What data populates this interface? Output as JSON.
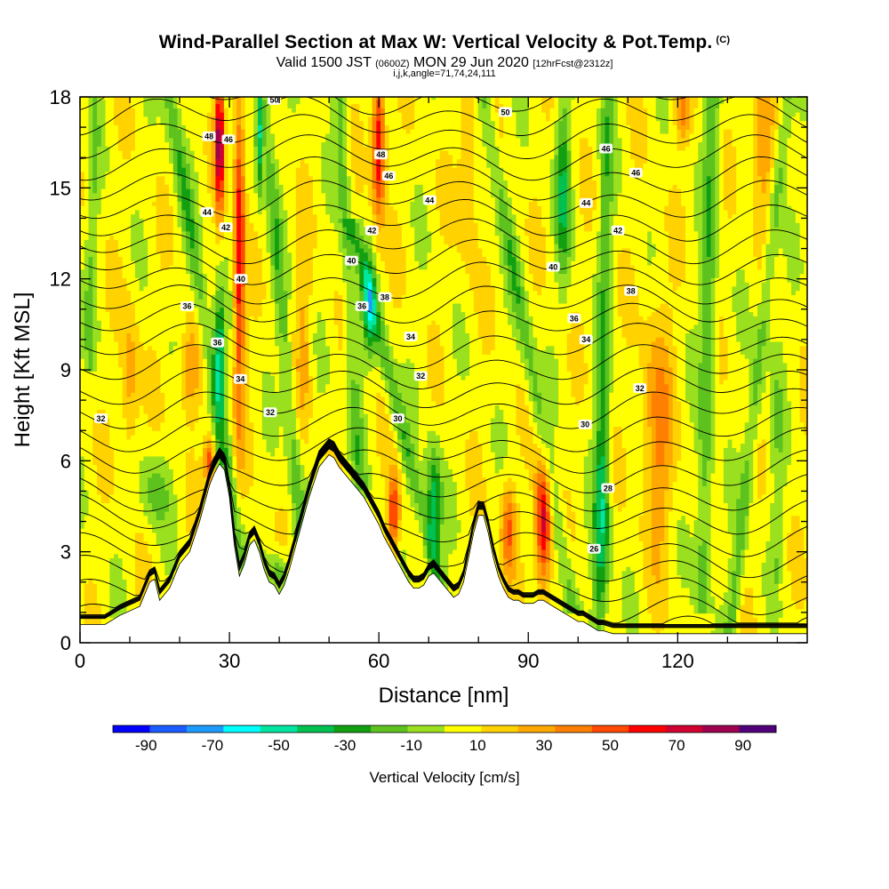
{
  "header": {
    "title": "Wind-Parallel Section at Max W: Vertical Velocity & Pot.Temp.",
    "copyright": "(C)",
    "valid_prefix": "Valid 1500 JST",
    "valid_utc": "(0600Z)",
    "valid_date": "MON 29 Jun 2020",
    "forecast": "[12hrFcst@2312z]",
    "indices": "i,j,k,angle=71,74,24,111"
  },
  "chart_data": {
    "type": "heatmap",
    "title": "Wind-Parallel Section at Max W: Vertical Velocity & Pot.Temp.",
    "xlabel": "Distance [nm]",
    "ylabel": "Height [Kft MSL]",
    "xlim": [
      0,
      146
    ],
    "ylim": [
      0,
      18
    ],
    "x_ticks": [
      "0",
      "30",
      "60",
      "90",
      "120"
    ],
    "y_ticks": [
      "0",
      "3",
      "6",
      "9",
      "12",
      "15",
      "18"
    ],
    "colorbar": {
      "label": "Vertical Velocity [cm/s]",
      "tick_labels": [
        "-90",
        "-70",
        "-50",
        "-30",
        "-10",
        "10",
        "30",
        "50",
        "70",
        "90"
      ],
      "range": [
        -100,
        100
      ],
      "colors": [
        "#0000ff",
        "#1a5cff",
        "#1e9bff",
        "#00ffff",
        "#00e6a0",
        "#00c050",
        "#12a012",
        "#5ec21e",
        "#9ae01e",
        "#ffff00",
        "#ffd200",
        "#ffa800",
        "#ff8000",
        "#ff4a00",
        "#ff0000",
        "#d00030",
        "#9c004e",
        "#50007a"
      ]
    },
    "terrain_kft": {
      "x_nm": [
        0,
        5,
        8,
        12,
        14,
        15,
        16,
        18,
        20,
        22,
        24,
        25,
        26,
        27,
        28,
        29,
        30,
        31,
        32,
        33,
        34,
        35,
        36,
        37,
        38,
        39,
        40,
        41,
        42,
        43,
        44,
        45,
        46,
        47,
        48,
        49,
        50,
        51,
        52,
        53,
        54,
        55,
        56,
        57,
        58,
        59,
        60,
        61,
        62,
        63,
        64,
        65,
        66,
        67,
        68,
        69,
        70,
        71,
        72,
        73,
        74,
        75,
        76,
        77,
        78,
        79,
        80,
        81,
        82,
        83,
        84,
        85,
        86,
        87,
        88,
        89,
        90,
        91,
        92,
        93,
        94,
        95,
        96,
        97,
        98,
        99,
        100,
        101,
        102,
        103,
        104,
        105,
        106,
        107,
        108,
        109,
        110,
        111,
        112,
        113,
        114,
        115,
        116,
        117,
        118,
        119,
        120,
        121,
        122,
        123,
        124,
        125,
        126,
        127,
        128,
        129,
        130,
        131,
        132,
        133,
        134,
        135,
        136,
        137,
        138,
        139,
        140,
        141,
        142,
        143,
        144,
        145,
        146
      ],
      "height": [
        0.6,
        0.6,
        0.9,
        1.2,
        2.0,
        2.1,
        1.4,
        1.8,
        2.6,
        3.0,
        4.0,
        4.6,
        5.2,
        5.6,
        5.9,
        5.7,
        4.8,
        3.2,
        2.2,
        2.6,
        3.2,
        3.4,
        3.0,
        2.4,
        2.0,
        1.9,
        1.6,
        1.9,
        2.4,
        3.0,
        3.6,
        4.2,
        4.8,
        5.3,
        5.8,
        6.0,
        6.2,
        6.1,
        5.8,
        5.6,
        5.4,
        5.2,
        5.0,
        4.8,
        4.5,
        4.2,
        3.9,
        3.5,
        3.2,
        2.9,
        2.6,
        2.3,
        2.0,
        1.8,
        1.8,
        1.9,
        2.2,
        2.3,
        2.1,
        1.9,
        1.7,
        1.5,
        1.6,
        2.0,
        2.8,
        3.6,
        4.2,
        4.2,
        3.6,
        2.8,
        2.2,
        1.8,
        1.5,
        1.4,
        1.4,
        1.3,
        1.3,
        1.3,
        1.4,
        1.4,
        1.3,
        1.2,
        1.1,
        1.0,
        0.9,
        0.8,
        0.7,
        0.7,
        0.6,
        0.5,
        0.4,
        0.4,
        0.35,
        0.3,
        0.3,
        0.3,
        0.3,
        0.3,
        0.3,
        0.3,
        0.3,
        0.3,
        0.3,
        0.3,
        0.3,
        0.3,
        0.3,
        0.3,
        0.3,
        0.3,
        0.3,
        0.3,
        0.3,
        0.3,
        0.3,
        0.3,
        0.3,
        0.3,
        0.3,
        0.3,
        0.3,
        0.3,
        0.3,
        0.3,
        0.3,
        0.3,
        0.3,
        0.3,
        0.3,
        0.3,
        0.3,
        0.3,
        0.3
      ]
    },
    "velocity_features": [
      {
        "x": 28,
        "y": 16.5,
        "w": 0.9,
        "h": 2.2,
        "v": 80
      },
      {
        "x": 32,
        "y": 13.0,
        "w": 1.1,
        "h": 6.0,
        "v": 60
      },
      {
        "x": 36,
        "y": 16.8,
        "w": 0.7,
        "h": 2.0,
        "v": -50
      },
      {
        "x": 28,
        "y": 9.5,
        "w": 1.1,
        "h": 2.0,
        "v": -50
      },
      {
        "x": 60,
        "y": 16.5,
        "w": 1.3,
        "h": 2.5,
        "v": 65
      },
      {
        "x": 58,
        "y": 11.0,
        "w": 1.3,
        "h": 1.5,
        "v": -45
      },
      {
        "x": 71,
        "y": 4.5,
        "w": 1.5,
        "h": 2.0,
        "v": -45
      },
      {
        "x": 93,
        "y": 4.0,
        "w": 1.6,
        "h": 2.2,
        "v": 70
      },
      {
        "x": 86,
        "y": 3.8,
        "w": 1.5,
        "h": 1.5,
        "v": 40
      },
      {
        "x": 63,
        "y": 4.3,
        "w": 1.2,
        "h": 1.3,
        "v": 55
      },
      {
        "x": 26,
        "y": 6.0,
        "w": 1.1,
        "h": 0.8,
        "v": 50
      },
      {
        "x": 22,
        "y": 9.0,
        "w": 2.0,
        "h": 1.5,
        "v": 30
      },
      {
        "x": 10,
        "y": 8.5,
        "w": 1.8,
        "h": 2.5,
        "v": 25
      },
      {
        "x": 15,
        "y": 5.0,
        "w": 3.0,
        "h": 1.2,
        "v": -22
      },
      {
        "x": 40,
        "y": 2.3,
        "w": 2.0,
        "h": 0.7,
        "v": -30
      },
      {
        "x": 97,
        "y": 15.0,
        "w": 1.5,
        "h": 3.0,
        "v": -38
      },
      {
        "x": 105,
        "y": 4.0,
        "w": 1.5,
        "h": 3.5,
        "v": -30
      },
      {
        "x": 116,
        "y": 7.0,
        "w": 3.0,
        "h": 4.0,
        "v": 30
      },
      {
        "x": 137,
        "y": 16.5,
        "w": 2.0,
        "h": 2.5,
        "v": 30
      },
      {
        "x": 121,
        "y": 17.5,
        "w": 1.5,
        "h": 1.0,
        "v": 30
      },
      {
        "x": 78,
        "y": 15.5,
        "w": 2.0,
        "h": 3.0,
        "v": 20
      },
      {
        "x": 45,
        "y": 10.0,
        "w": 1.5,
        "h": 3.0,
        "v": 20
      },
      {
        "x": 52,
        "y": 2.5,
        "w": 3.0,
        "h": 2.0,
        "v": 10
      }
    ],
    "velocity_bands": [
      {
        "x0": 18,
        "y0": 18,
        "x1": 34,
        "y1": 1,
        "half_width": 1.6,
        "v": -25
      },
      {
        "x0": 37,
        "y0": 18,
        "x1": 45,
        "y1": 2,
        "half_width": 1.4,
        "v": -22
      },
      {
        "x0": 52,
        "y0": 18,
        "x1": 56,
        "y1": 6,
        "half_width": 1.4,
        "v": -20
      },
      {
        "x0": 56,
        "y0": 13,
        "x1": 72,
        "y1": 2,
        "half_width": 1.6,
        "v": -25
      },
      {
        "x0": 81,
        "y0": 18,
        "x1": 98,
        "y1": 2,
        "half_width": 1.6,
        "v": -22
      },
      {
        "x0": 106,
        "y0": 18,
        "x1": 104,
        "y1": 1,
        "half_width": 1.4,
        "v": -22
      },
      {
        "x0": 127,
        "y0": 18,
        "x1": 125,
        "y1": 2,
        "half_width": 1.6,
        "v": -25
      },
      {
        "x0": 142,
        "y0": 18,
        "x1": 131,
        "y1": 1,
        "half_width": 1.4,
        "v": -22
      },
      {
        "x0": 3,
        "y0": 18,
        "x1": 2,
        "y1": 10,
        "half_width": 1.2,
        "v": -15
      },
      {
        "x0": 140,
        "y0": 9,
        "x1": 140,
        "y1": 3,
        "half_width": 1.4,
        "v": -12
      }
    ],
    "theta_contours": {
      "levels_k": [
        26,
        28,
        30,
        32,
        34,
        36,
        38,
        40,
        42,
        44,
        46,
        48,
        50
      ],
      "labels": [
        {
          "text": "32",
          "x": 4.2,
          "y": 7.4
        },
        {
          "text": "36",
          "x": 21.5,
          "y": 11.1
        },
        {
          "text": "44",
          "x": 25.5,
          "y": 14.2
        },
        {
          "text": "48",
          "x": 25.9,
          "y": 16.7
        },
        {
          "text": "46",
          "x": 29.8,
          "y": 16.6
        },
        {
          "text": "42",
          "x": 29.3,
          "y": 13.7
        },
        {
          "text": "40",
          "x": 32.3,
          "y": 12.0
        },
        {
          "text": "36",
          "x": 27.6,
          "y": 9.9
        },
        {
          "text": "34",
          "x": 32.2,
          "y": 8.7
        },
        {
          "text": "32",
          "x": 38.2,
          "y": 7.6
        },
        {
          "text": "50",
          "x": 39.0,
          "y": 17.9
        },
        {
          "text": "40",
          "x": 54.5,
          "y": 12.6
        },
        {
          "text": "36",
          "x": 56.6,
          "y": 11.1
        },
        {
          "text": "38",
          "x": 61.2,
          "y": 11.4
        },
        {
          "text": "42",
          "x": 58.6,
          "y": 13.6
        },
        {
          "text": "46",
          "x": 62.0,
          "y": 15.4
        },
        {
          "text": "48",
          "x": 60.4,
          "y": 16.1
        },
        {
          "text": "34",
          "x": 66.4,
          "y": 10.1
        },
        {
          "text": "32",
          "x": 68.4,
          "y": 8.8
        },
        {
          "text": "30",
          "x": 63.8,
          "y": 7.4
        },
        {
          "text": "44",
          "x": 70.2,
          "y": 14.6
        },
        {
          "text": "50",
          "x": 85.4,
          "y": 17.5
        },
        {
          "text": "46",
          "x": 105.6,
          "y": 16.3
        },
        {
          "text": "46",
          "x": 111.6,
          "y": 15.5
        },
        {
          "text": "44",
          "x": 101.6,
          "y": 14.5
        },
        {
          "text": "42",
          "x": 108.0,
          "y": 13.6
        },
        {
          "text": "40",
          "x": 95.0,
          "y": 12.4
        },
        {
          "text": "38",
          "x": 110.6,
          "y": 11.6
        },
        {
          "text": "36",
          "x": 99.2,
          "y": 10.7
        },
        {
          "text": "34",
          "x": 101.6,
          "y": 10.0
        },
        {
          "text": "32",
          "x": 112.4,
          "y": 8.4
        },
        {
          "text": "30",
          "x": 101.4,
          "y": 7.2
        },
        {
          "text": "28",
          "x": 106.0,
          "y": 5.1
        },
        {
          "text": "26",
          "x": 103.2,
          "y": 3.1
        }
      ]
    }
  }
}
